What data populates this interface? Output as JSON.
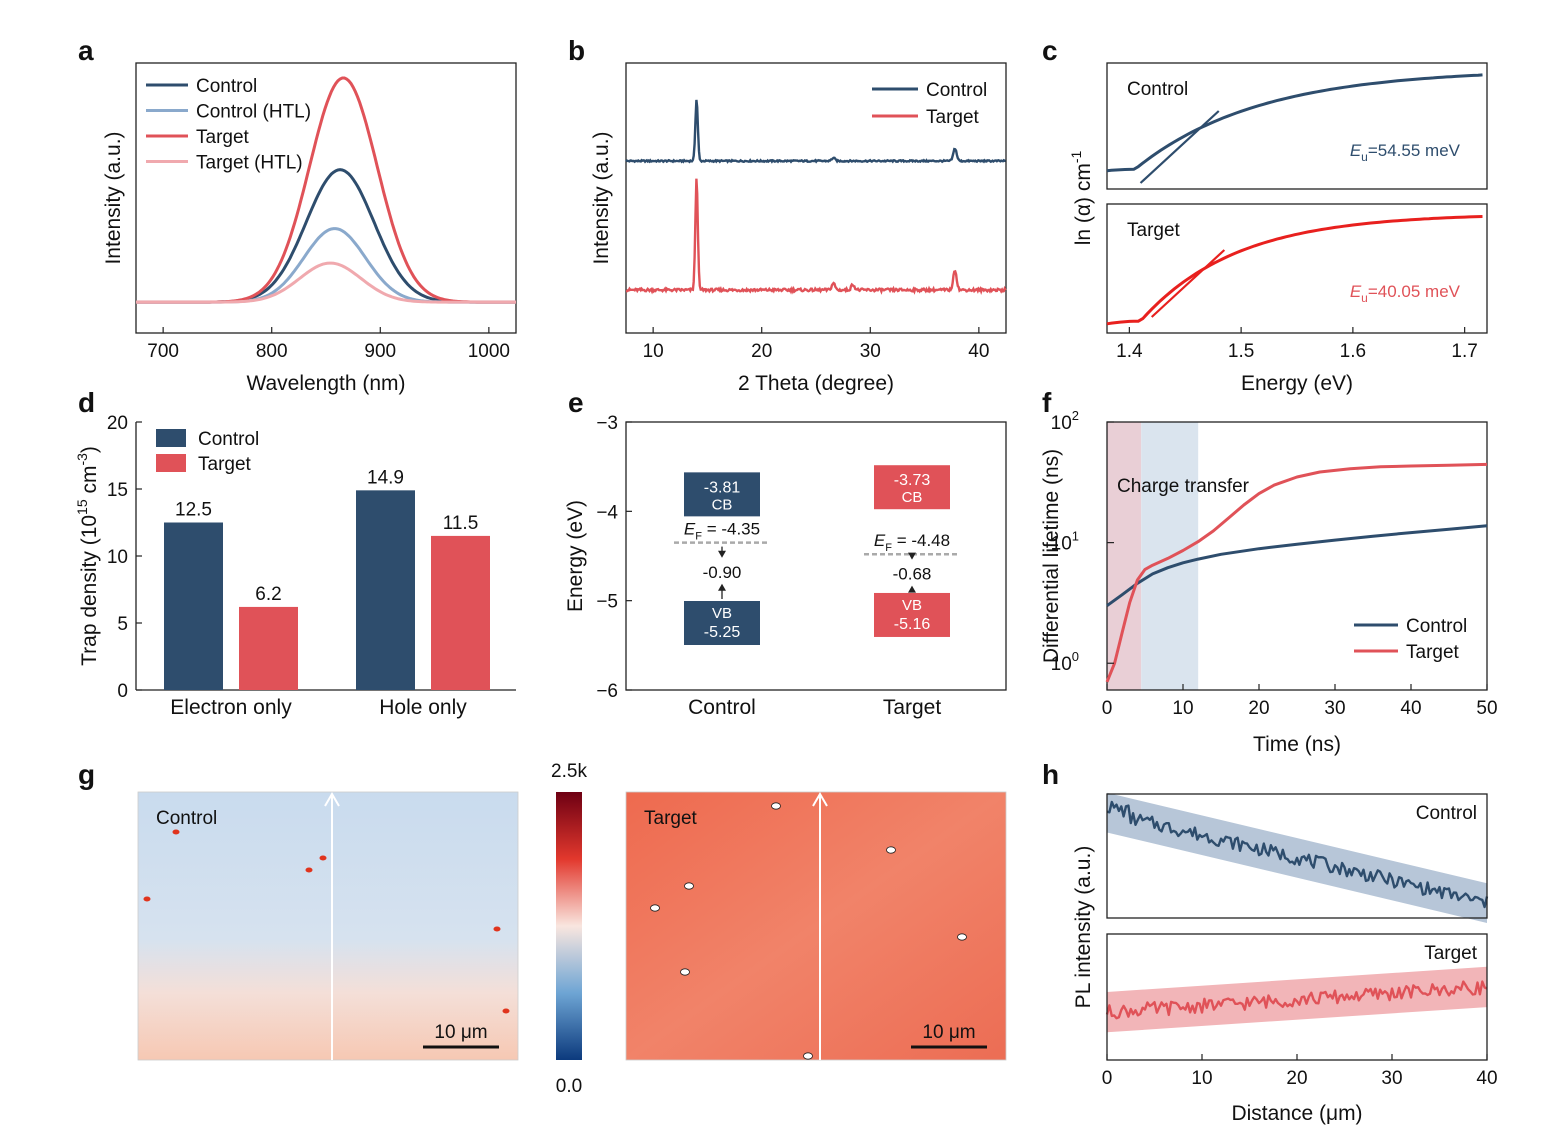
{
  "colors": {
    "control": "#2e4d6d",
    "control_htl": "#8aa9cc",
    "target": "#e05258",
    "target_htl": "#f0a9ae",
    "target_c": "#e8201e"
  },
  "chart_data": [
    {
      "id": "a",
      "panel": "a",
      "type": "line",
      "xlabel": "Wavelength (nm)",
      "ylabel": "Intensity (a.u.)",
      "xlim": [
        675,
        1025
      ],
      "ylim": [
        0,
        1.05
      ],
      "xticks": [
        700,
        800,
        900,
        1000
      ],
      "legend": "top-left",
      "series": [
        {
          "name": "Control",
          "color": "#2e4d6d",
          "peak": 863,
          "width": 44,
          "amp": 0.515
        },
        {
          "name": "Control (HTL)",
          "color": "#8aa9cc",
          "peak": 858,
          "width": 40,
          "amp": 0.286
        },
        {
          "name": "Target",
          "color": "#e05258",
          "peak": 866,
          "width": 44,
          "amp": 0.872
        },
        {
          "name": "Target (HTL)",
          "color": "#f0a9ae",
          "peak": 854,
          "width": 40,
          "amp": 0.152
        }
      ],
      "baseline": 0.12
    },
    {
      "id": "b",
      "panel": "b",
      "type": "line",
      "xlabel": "2 Theta (degree)",
      "ylabel": "Intensity (a.u.)",
      "xlim": [
        7.5,
        42.5
      ],
      "xticks": [
        10,
        20,
        30,
        40
      ],
      "legend": "top-right",
      "series": [
        {
          "name": "Control",
          "color": "#2e4d6d",
          "peaks": [
            [
              14.0,
              1.0
            ],
            [
              26.6,
              0.05
            ],
            [
              37.8,
              0.2
            ]
          ]
        },
        {
          "name": "Target",
          "color": "#e05258",
          "peaks": [
            [
              14.0,
              1.0
            ],
            [
              26.6,
              0.06
            ],
            [
              28.4,
              0.05
            ],
            [
              37.8,
              0.18
            ]
          ]
        }
      ]
    },
    {
      "id": "c",
      "panel": "c",
      "type": "line",
      "xlabel": "Energy (eV)",
      "ylabel": "ln (α) cm",
      "ylabel_sup": "-1",
      "xlim": [
        1.38,
        1.72
      ],
      "xticks": [
        1.4,
        1.5,
        1.6,
        1.7
      ],
      "series": [
        {
          "name": "Control",
          "color": "#2e4d6d",
          "eu_label": "=54.55 meV"
        },
        {
          "name": "Target",
          "color": "#e8201e",
          "eu_label": "=40.05 meV"
        }
      ],
      "eu_symbol": "E",
      "eu_sub": "u"
    },
    {
      "id": "d",
      "panel": "d",
      "type": "bar",
      "ylabel": "Trap density (10",
      "ylabel_sup1": "15",
      "ylabel_mid": " cm",
      "ylabel_sup2": "-3",
      "ylabel_end": ")",
      "ylim": [
        0,
        20
      ],
      "yticks": [
        0,
        5,
        10,
        15,
        20
      ],
      "categories": [
        "Electron only",
        "Hole only"
      ],
      "legend": "top-left",
      "series": [
        {
          "name": "Control",
          "color": "#2e4d6d",
          "values": [
            12.5,
            14.9
          ],
          "labels": [
            "12.5",
            "14.9"
          ]
        },
        {
          "name": "Target",
          "color": "#e05258",
          "values": [
            6.2,
            11.5
          ],
          "labels": [
            "6.2",
            "11.5"
          ]
        }
      ]
    },
    {
      "id": "e",
      "panel": "e",
      "type": "diagram",
      "ylabel": "Energy (eV)",
      "ylim": [
        -6,
        -3
      ],
      "yticks": [
        -3,
        -4,
        -5,
        -6
      ],
      "ytick_labels": [
        "−3",
        "−4",
        "−5",
        "−6"
      ],
      "categories": [
        "Control",
        "Target"
      ],
      "levels": [
        {
          "name": "Control",
          "cb": -3.81,
          "vb": -5.25,
          "ef": -4.35,
          "cb_label": "-3.81",
          "vb_label": "-5.25",
          "ef_label": " = -4.35",
          "gap_label": "-0.90"
        },
        {
          "name": "Target",
          "cb": -3.73,
          "vb": -5.16,
          "ef": -4.48,
          "cb_label": "-3.73",
          "vb_label": "-5.16",
          "ef_label": " = -4.48",
          "gap_label": "-0.68"
        }
      ],
      "cb_text": "CB",
      "vb_text": "VB",
      "ef_symbol": "E",
      "ef_sub": "F"
    },
    {
      "id": "f",
      "panel": "f",
      "type": "line",
      "xlabel": "Time (ns)",
      "ylabel": "Differential lifetime (ns)",
      "xlim": [
        0,
        50
      ],
      "xticks": [
        0,
        10,
        20,
        30,
        40,
        50
      ],
      "yscale": "log",
      "ylim": [
        0.6,
        100
      ],
      "ytick_base": "10",
      "ytick_exps": [
        "0",
        "1",
        "2"
      ],
      "region_label": "Charge transfer",
      "regions": [
        [
          0,
          4.5
        ],
        [
          4.5,
          12
        ]
      ],
      "legend": "bottom-right",
      "series": [
        {
          "name": "Control",
          "color": "#2e4d6d",
          "x": [
            0,
            2,
            4,
            6,
            8,
            10,
            12,
            15,
            20,
            25,
            30,
            35,
            40,
            45,
            50
          ],
          "y": [
            3.0,
            3.7,
            4.6,
            5.5,
            6.2,
            6.8,
            7.3,
            8.0,
            8.9,
            9.7,
            10.5,
            11.3,
            12.1,
            12.9,
            13.8
          ]
        },
        {
          "name": "Target",
          "color": "#e05258",
          "x": [
            0,
            1,
            2,
            3,
            4,
            5,
            6,
            8,
            10,
            12,
            14,
            16,
            18,
            20,
            22,
            25,
            28,
            32,
            36,
            40,
            45,
            50
          ],
          "y": [
            0.7,
            1.0,
            1.8,
            3.2,
            4.9,
            6.0,
            6.5,
            7.4,
            8.6,
            10.2,
            12.5,
            16.0,
            20.5,
            25.5,
            30.0,
            35.0,
            38.5,
            41.0,
            42.5,
            43.2,
            43.8,
            44.5
          ]
        }
      ]
    },
    {
      "id": "g",
      "panel": "g",
      "type": "heatmap",
      "maps": [
        {
          "name": "Control",
          "scalebar": "10 μm"
        },
        {
          "name": "Target",
          "scalebar": "10 μm"
        }
      ],
      "colorbar": {
        "max_label": "2.5k",
        "min_label": "0.0"
      }
    },
    {
      "id": "h",
      "panel": "h",
      "type": "line",
      "xlabel": "Distance (μm)",
      "ylabel": "PL intensity (a.u.)",
      "xlim": [
        0,
        40
      ],
      "xticks": [
        0,
        10,
        20,
        30,
        40
      ],
      "series": [
        {
          "name": "Control",
          "color": "#2e4d6d",
          "start": 0.85,
          "end": 0.12
        },
        {
          "name": "Target",
          "color": "#e05258",
          "start": 0.38,
          "end": 0.58
        }
      ]
    }
  ]
}
